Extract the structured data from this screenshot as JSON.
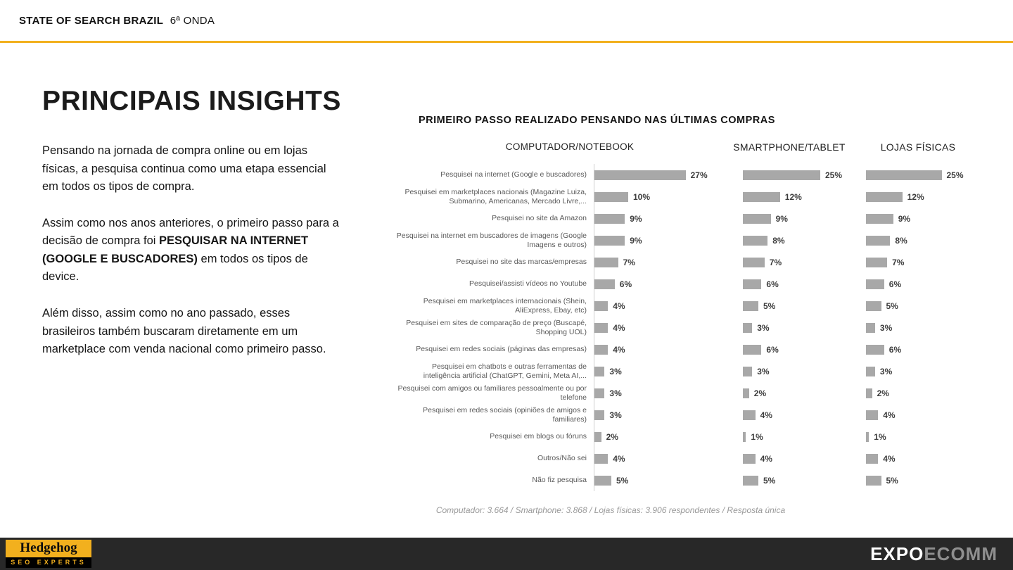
{
  "header": {
    "title_bold": "STATE OF SEARCH BRAZIL",
    "title_regular": "6ª ONDA"
  },
  "main": {
    "title": "PRINCIPAIS INSIGHTS",
    "paragraphs": [
      {
        "pre": "Pensando na jornada de compra online ou em lojas físicas, a pesquisa continua como uma etapa essencial em todos os tipos de compra.",
        "bold": "",
        "post": ""
      },
      {
        "pre": "Assim como nos anos anteriores, o primeiro passo para a decisão de compra foi ",
        "bold": "PESQUISAR NA INTERNET (GOOGLE E BUSCADORES)",
        "post": " em todos os tipos de device."
      },
      {
        "pre": "Além disso, assim como no ano passado, esses brasileiros também buscaram diretamente em um marketplace com venda nacional como primeiro passo.",
        "bold": "",
        "post": ""
      }
    ]
  },
  "chart_data": {
    "type": "bar",
    "orientation": "horizontal",
    "title": "PRIMEIRO PASSO REALIZADO PENSANDO NAS ÚLTIMAS COMPRAS",
    "columns": [
      "COMPUTADOR/NOTEBOOK",
      "SMARTPHONE/TABLET",
      "LOJAS FÍSICAS"
    ],
    "bar_color": "#a8a8a8",
    "unit": "%",
    "categories": [
      "Pesquisei na internet (Google e buscadores)",
      "Pesquisei em marketplaces nacionais (Magazine Luiza, Submarino, Americanas, Mercado Livre,...",
      "Pesquisei no site da Amazon",
      "Pesquisei na internet em buscadores de imagens (Google Imagens e outros)",
      "Pesquisei no site das marcas/empresas",
      "Pesquisei/assisti vídeos no Youtube",
      "Pesquisei em marketplaces internacionais (Shein, AliExpress, Ebay, etc)",
      "Pesquisei em sites de comparação de preço (Buscapé, Shopping UOL)",
      "Pesquisei em redes sociais (páginas das empresas)",
      "Pesquisei em chatbots e outras ferramentas de inteligência artificial (ChatGPT, Gemini, Meta AI,...",
      "Pesquisei com amigos ou familiares pessoalmente ou por telefone",
      "Pesquisei em redes sociais (opiniões de amigos e familiares)",
      "Pesquisei em blogs ou fóruns",
      "Outros/Não sei",
      "Não fiz pesquisa"
    ],
    "series": [
      {
        "name": "COMPUTADOR/NOTEBOOK",
        "values": [
          27,
          10,
          9,
          9,
          7,
          6,
          4,
          4,
          4,
          3,
          3,
          3,
          2,
          4,
          5
        ]
      },
      {
        "name": "SMARTPHONE/TABLET",
        "values": [
          25,
          12,
          9,
          8,
          7,
          6,
          5,
          3,
          6,
          3,
          2,
          4,
          1,
          4,
          5
        ]
      },
      {
        "name": "LOJAS FÍSICAS",
        "values": [
          25,
          12,
          9,
          8,
          7,
          6,
          5,
          3,
          6,
          3,
          2,
          4,
          1,
          4,
          5
        ]
      }
    ],
    "footnote": "Computador: 3.664 / Smartphone: 3.868 / Lojas físicas: 3.906 respondentes / Resposta única"
  },
  "footer": {
    "hedgehog_name": "Hedgehog",
    "hedgehog_sub": "SEO EXPERTS",
    "expo": "EXPO",
    "ecomm": "ECOMM"
  },
  "colors": {
    "accent_gold": "#F2B01E",
    "bar_gray": "#a8a8a8",
    "footer_dark": "#282828"
  }
}
